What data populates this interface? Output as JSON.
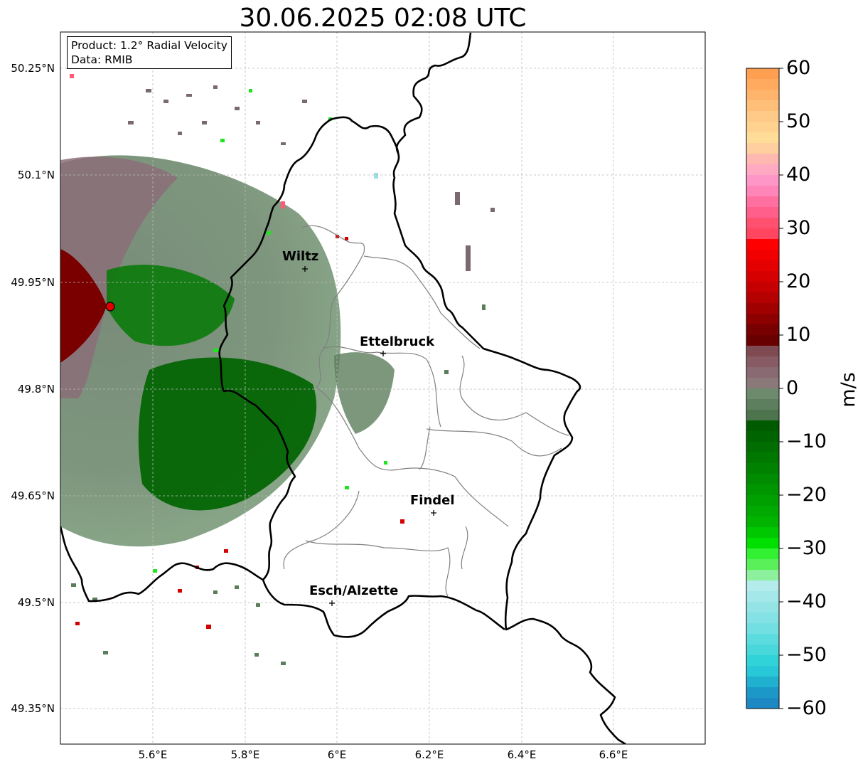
{
  "title": "30.06.2025 02:08 UTC",
  "info_box": {
    "product": "Product: 1.2° Radial Velocity",
    "data": "Data: RMIB"
  },
  "axes": {
    "lat_labels": [
      "50.25°N",
      "50.1°N",
      "49.95°N",
      "49.8°N",
      "49.65°N",
      "49.5°N",
      "49.35°N"
    ],
    "lon_labels": [
      "5.6°E",
      "5.8°E",
      "6°E",
      "6.2°E",
      "6.4°E",
      "6.6°E"
    ]
  },
  "colorbar": {
    "unit": "m/s",
    "ticks": [
      "60",
      "50",
      "40",
      "30",
      "20",
      "10",
      "0",
      "−10",
      "−20",
      "−30",
      "−40",
      "−50",
      "−60"
    ],
    "range": [
      -60,
      60
    ]
  },
  "cities": [
    {
      "name": "Wiltz",
      "lon": 5.93,
      "lat": 49.97
    },
    {
      "name": "Ettelbruck",
      "lon": 6.1,
      "lat": 49.85
    },
    {
      "name": "Findel",
      "lon": 6.21,
      "lat": 49.63
    },
    {
      "name": "Esch/Alzette",
      "lon": 5.99,
      "lat": 49.5
    }
  ],
  "radar_site": {
    "lon": 5.51,
    "lat": 49.91
  }
}
